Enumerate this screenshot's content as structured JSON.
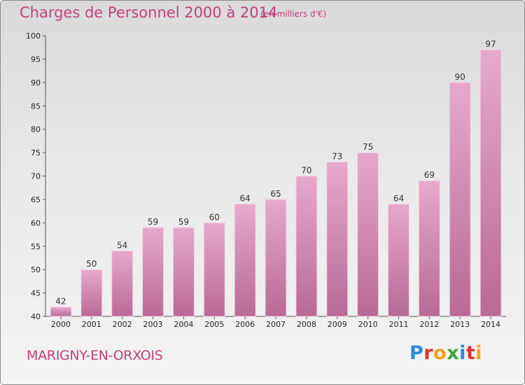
{
  "header": {
    "title": "Charges de Personnel 2000 à 2014",
    "subtitle": "(en milliers d'€)"
  },
  "footer": {
    "place": "MARIGNY-EN-ORXOIS",
    "logo_letters": [
      {
        "char": "P",
        "color": "#2e8bd6"
      },
      {
        "char": "r",
        "color": "#e0342c"
      },
      {
        "char": "o",
        "color": "#f0a21c"
      },
      {
        "char": "x",
        "color": "#3aa63a"
      },
      {
        "char": "i",
        "color": "#2e8bd6"
      },
      {
        "char": "t",
        "color": "#e0342c"
      },
      {
        "char": "i",
        "color": "#f0a21c"
      }
    ]
  },
  "chart_data": {
    "type": "bar",
    "categories": [
      "2000",
      "2001",
      "2002",
      "2003",
      "2004",
      "2005",
      "2006",
      "2007",
      "2008",
      "2009",
      "2010",
      "2011",
      "2012",
      "2013",
      "2014"
    ],
    "values": [
      42,
      50,
      54,
      59,
      59,
      60,
      64,
      65,
      70,
      73,
      75,
      64,
      69,
      90,
      97
    ],
    "ylim": [
      40,
      100
    ],
    "yticks": [
      40,
      45,
      50,
      55,
      60,
      65,
      70,
      75,
      80,
      85,
      90,
      95,
      100
    ],
    "grid": false,
    "colors": {
      "bar_top": "#e7a9cb",
      "bar_bottom": "#b86a93",
      "text": "#c0407e"
    }
  }
}
